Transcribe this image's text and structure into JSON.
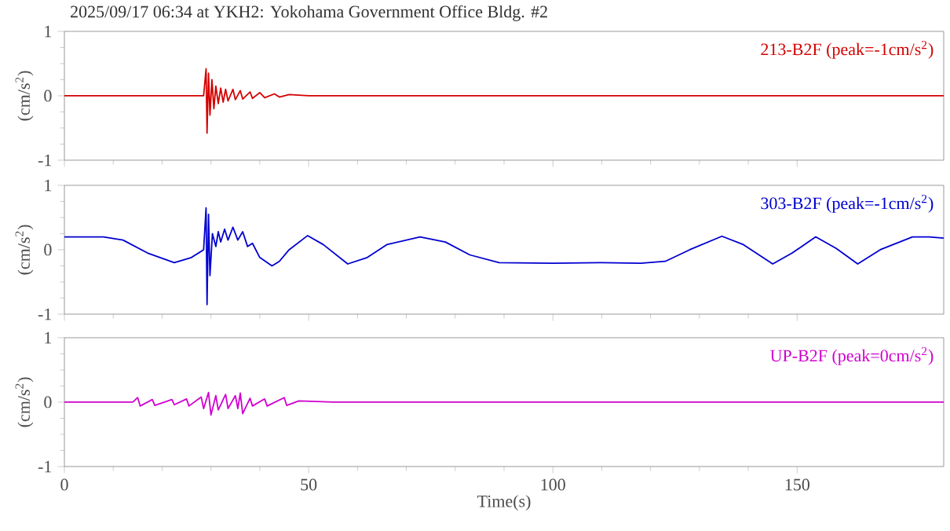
{
  "chart_data": [
    {
      "type": "line",
      "title": "2025/09/17 06:34 at YKH2: Yokohama Government Office Bldg. #2",
      "ylabel": "(cm/s$^{2}$)",
      "legend": "top right",
      "tick_labels": "y",
      "xlim": [
        0,
        180
      ],
      "xticks": [
        0,
        50,
        100,
        150
      ],
      "ylim": [
        -1,
        1
      ],
      "yticks": [
        -1,
        0,
        1
      ],
      "x": [
        0,
        10,
        20,
        28.5,
        29,
        29.2,
        29.5,
        29.8,
        30.2,
        30.6,
        31,
        31.5,
        32,
        32.5,
        33,
        33.5,
        34.5,
        35,
        36,
        36.5,
        38,
        38.5,
        40,
        41,
        43,
        44,
        46,
        50,
        100,
        180
      ],
      "series": [
        {
          "name": "213-B2F (peak=-1cm/s$^{2}$)",
          "color": "#d40000",
          "values": [
            0,
            0,
            0,
            0,
            0.42,
            -0.58,
            0.35,
            -0.3,
            0.25,
            -0.2,
            0.15,
            -0.12,
            0.12,
            -0.1,
            0.1,
            -0.08,
            0.1,
            -0.06,
            0.08,
            -0.05,
            0.06,
            -0.04,
            0.05,
            -0.03,
            0.03,
            -0.02,
            0.02,
            0,
            0,
            0
          ]
        }
      ]
    },
    {
      "type": "line",
      "ylabel": "(cm/s$^{2}$)",
      "legend": "top right",
      "tick_labels": "y",
      "xlim": [
        0,
        180
      ],
      "xticks": [
        0,
        50,
        100,
        150
      ],
      "ylim": [
        -1,
        1
      ],
      "yticks": [
        -1,
        0,
        1
      ],
      "x": [
        0,
        8,
        12,
        17,
        22.5,
        26,
        28.5,
        29,
        29.2,
        29.5,
        29.8,
        30.3,
        31,
        31.5,
        32,
        32.8,
        33.5,
        34.5,
        35.5,
        36.5,
        37.5,
        38.5,
        40,
        42.5,
        44,
        46,
        49.8,
        53,
        58,
        62,
        66,
        72.8,
        78,
        83,
        89,
        100,
        110,
        118,
        123,
        128,
        134.6,
        139,
        145,
        149,
        153.8,
        158,
        162.4,
        167,
        173.6,
        177,
        180
      ],
      "series": [
        {
          "name": "303-B2F (peak=-1cm/s$^{2}$)",
          "color": "#0000d0",
          "values": [
            0.2,
            0.2,
            0.15,
            -0.05,
            -0.2,
            -0.12,
            0,
            0.65,
            -0.85,
            0.55,
            -0.4,
            0.25,
            0.05,
            0.28,
            0.12,
            0.32,
            0.15,
            0.35,
            0.15,
            0.28,
            0.05,
            0.1,
            -0.12,
            -0.25,
            -0.18,
            0,
            0.22,
            0.08,
            -0.22,
            -0.12,
            0.08,
            0.2,
            0.12,
            -0.08,
            -0.2,
            -0.21,
            -0.2,
            -0.21,
            -0.18,
            0,
            0.21,
            0.08,
            -0.22,
            -0.05,
            0.2,
            0.02,
            -0.22,
            0,
            0.2,
            0.2,
            0.18
          ]
        }
      ]
    },
    {
      "type": "line",
      "ylabel": "(cm/s$^{2}$)",
      "xlabel": "Time(s)",
      "legend": "top right",
      "xlim": [
        0,
        180
      ],
      "xticks": [
        0,
        50,
        100,
        150
      ],
      "ylim": [
        -1,
        1
      ],
      "yticks": [
        -1,
        0,
        1
      ],
      "x": [
        0,
        14,
        15,
        15.5,
        18,
        18.5,
        22,
        22.5,
        25,
        25.5,
        28,
        28.5,
        29.5,
        30,
        31,
        31.5,
        33,
        33.5,
        35,
        35.5,
        36,
        36.5,
        38,
        38.5,
        41,
        41.5,
        45,
        45.5,
        48,
        55,
        180
      ],
      "series": [
        {
          "name": "UP-B2F (peak=0cm/s$^{2}$)",
          "color": "#d000d0",
          "values": [
            0,
            0,
            0.07,
            -0.06,
            0.04,
            -0.05,
            0.04,
            -0.04,
            0.05,
            -0.06,
            0.08,
            -0.1,
            0.15,
            -0.2,
            0.1,
            -0.12,
            0.12,
            -0.1,
            0.1,
            -0.1,
            0.14,
            -0.18,
            0.06,
            -0.06,
            0.05,
            -0.06,
            0.07,
            -0.05,
            0.02,
            0,
            0
          ]
        }
      ]
    }
  ]
}
